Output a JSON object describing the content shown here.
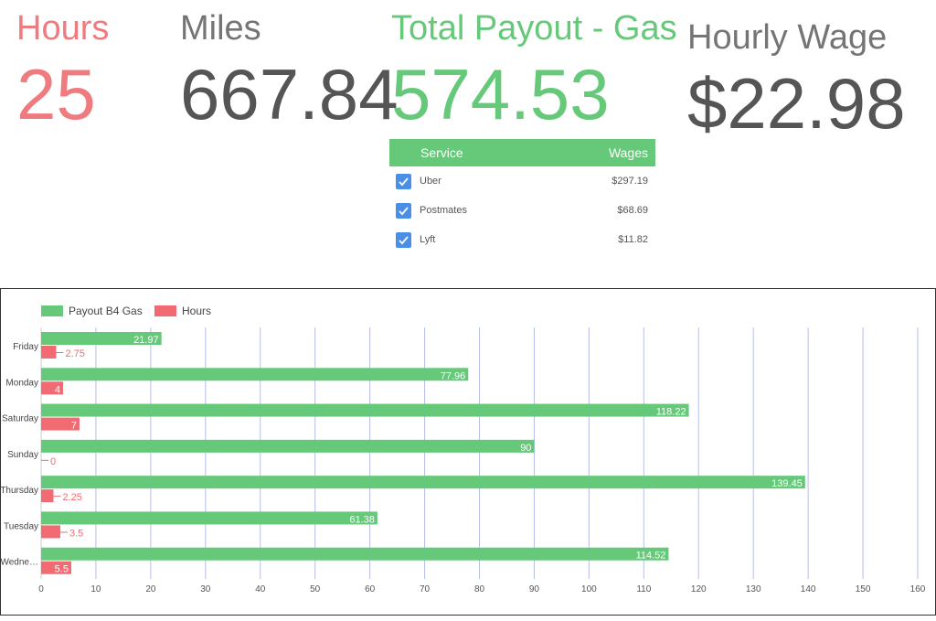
{
  "kpis": {
    "hours": {
      "label": "Hours",
      "value": "25"
    },
    "miles": {
      "label": "Miles",
      "value": "667.84"
    },
    "payout": {
      "label": "Total Payout - Gas",
      "value": "574.53"
    },
    "wage": {
      "label": "Hourly Wage",
      "value": "$22.98"
    }
  },
  "service_table": {
    "headers": {
      "service": "Service",
      "wages": "Wages"
    },
    "rows": [
      {
        "service": "Uber",
        "wage": "$297.19",
        "checked": true
      },
      {
        "service": "Postmates",
        "wage": "$68.69",
        "checked": true
      },
      {
        "service": "Lyft",
        "wage": "$11.82",
        "checked": true
      }
    ]
  },
  "colors": {
    "green": "#66c97a",
    "red": "#f26b72",
    "grid": "#b6bde6",
    "checkbox": "#4a8fe7"
  },
  "chart_data": {
    "type": "bar",
    "orientation": "horizontal",
    "categories": [
      "Friday",
      "Monday",
      "Saturday",
      "Sunday",
      "Thursday",
      "Tuesday",
      "Wedne…"
    ],
    "series": [
      {
        "name": "Payout B4 Gas",
        "values": [
          21.97,
          77.96,
          118.22,
          90,
          139.45,
          61.38,
          114.52
        ],
        "labels": [
          "21.97",
          "77.96",
          "118.22",
          "90",
          "139.45",
          "61.38",
          "114.52"
        ]
      },
      {
        "name": "Hours",
        "values": [
          2.75,
          4,
          7,
          0,
          2.25,
          3.5,
          5.5
        ],
        "labels": [
          "2.75",
          "4",
          "7",
          "0",
          "2.25",
          "3.5",
          "5.5"
        ]
      }
    ],
    "x_ticks": [
      0,
      10,
      20,
      30,
      40,
      50,
      60,
      70,
      80,
      90,
      100,
      110,
      120,
      130,
      140,
      150,
      160
    ],
    "xlim": [
      0,
      160
    ],
    "grid": true,
    "legend_position": "top-left"
  }
}
